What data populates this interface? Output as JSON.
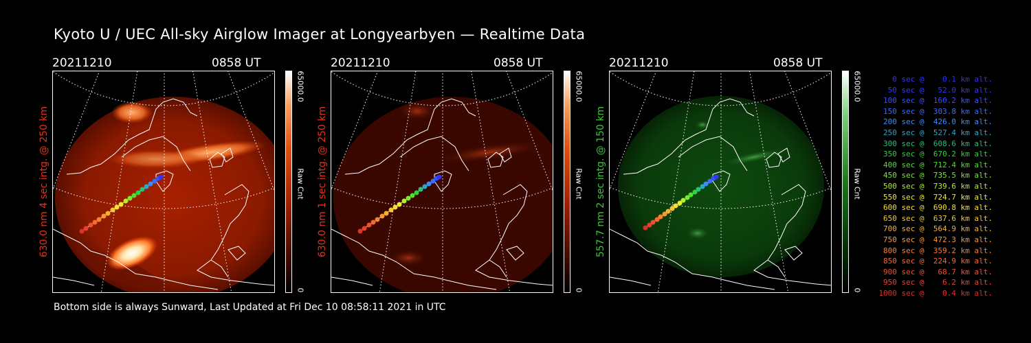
{
  "title": "Kyoto U / UEC All-sky Airglow Imager at Longyearbyen — Realtime Data",
  "footer": "Bottom side is always Sunward, Last Updated at Fri Dec 10 08:58:11 2021 in UTC",
  "panels": [
    {
      "date": "20211210",
      "time": "0858 UT",
      "side_label": "630.0 nm 4 sec intg. @ 250 km",
      "label_color": "#e8301a",
      "cbar_max": "65000.0",
      "cbar_min": "0",
      "cbar_unit": "Raw Cnt",
      "emission_color": "#c62a00",
      "emission_level": 0.75
    },
    {
      "date": "20211210",
      "time": "0858 UT",
      "side_label": "630.0 nm 1 sec intg. @ 250 km",
      "label_color": "#e8301a",
      "cbar_max": "65000.0",
      "cbar_min": "0",
      "cbar_unit": "Raw Cnt",
      "emission_color": "#5a0a00",
      "emission_level": 0.35
    },
    {
      "date": "20211210",
      "time": "0858 UT",
      "side_label": "557.7 nm 2 sec intg. @ 150 km",
      "label_color": "#3ec63a",
      "cbar_max": "65000.0",
      "cbar_min": "0",
      "cbar_unit": "Raw Cnt",
      "emission_color": "#0d5a0d",
      "emission_level": 0.4
    }
  ],
  "legend": [
    {
      "text": "   0 sec @    0.1 km alt.",
      "color": "#3030ff"
    },
    {
      "text": "  50 sec @   52.0 km alt.",
      "color": "#3434ff"
    },
    {
      "text": " 100 sec @  160.2 km alt.",
      "color": "#3850ff"
    },
    {
      "text": " 150 sec @  303.8 km alt.",
      "color": "#3a6cff"
    },
    {
      "text": " 200 sec @  426.0 km alt.",
      "color": "#3a8cff"
    },
    {
      "text": " 250 sec @  527.4 km alt.",
      "color": "#2aa8c8"
    },
    {
      "text": " 300 sec @  608.6 km alt.",
      "color": "#26c07a"
    },
    {
      "text": " 350 sec @  670.2 km alt.",
      "color": "#30d040"
    },
    {
      "text": " 400 sec @  712.4 km alt.",
      "color": "#50e030"
    },
    {
      "text": " 450 sec @  735.5 km alt.",
      "color": "#7ae830"
    },
    {
      "text": " 500 sec @  739.6 km alt.",
      "color": "#b0f030"
    },
    {
      "text": " 550 sec @  724.7 km alt.",
      "color": "#e8f030"
    },
    {
      "text": " 600 sec @  690.8 km alt.",
      "color": "#f8e030"
    },
    {
      "text": " 650 sec @  637.6 km alt.",
      "color": "#f8c830"
    },
    {
      "text": " 700 sec @  564.9 km alt.",
      "color": "#f8b030"
    },
    {
      "text": " 750 sec @  472.3 km alt.",
      "color": "#f89830"
    },
    {
      "text": " 800 sec @  359.2 km alt.",
      "color": "#f88030"
    },
    {
      "text": " 850 sec @  224.9 km alt.",
      "color": "#f86830"
    },
    {
      "text": " 900 sec @   68.7 km alt.",
      "color": "#f05030"
    },
    {
      "text": " 950 sec @    6.2 km alt.",
      "color": "#e84030"
    },
    {
      "text": "1000 sec @    0.4 km alt.",
      "color": "#e03028"
    }
  ]
}
